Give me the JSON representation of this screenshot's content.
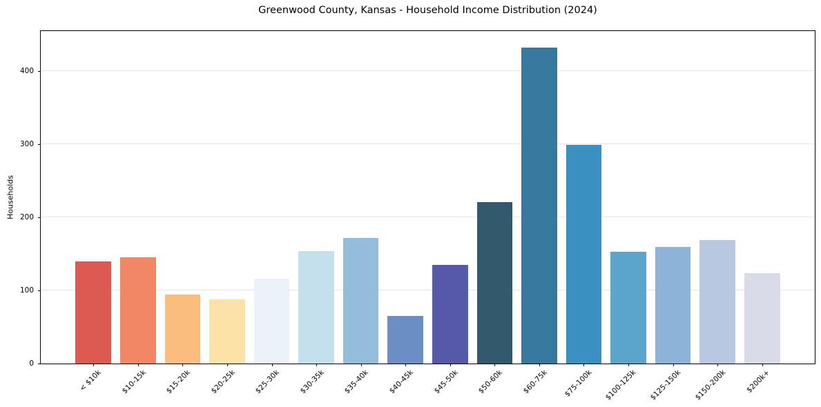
{
  "figure": {
    "title": "Greenwood County, Kansas - Household Income Distribution (2024)"
  },
  "chart_data": {
    "type": "bar",
    "title": "Greenwood County, Kansas - Household Income Distribution (2024)",
    "xlabel": "",
    "ylabel": "Households",
    "categories": [
      "< $10k",
      "$10-15k",
      "$15-20k",
      "$20-25k",
      "$25-30k",
      "$30-35k",
      "$35-40k",
      "$40-45k",
      "$45-50k",
      "$50-60k",
      "$60-75k",
      "$75-100k",
      "$100-125k",
      "$125-150k",
      "$150-200k",
      "$200k+"
    ],
    "values": [
      140,
      145,
      94,
      88,
      116,
      154,
      172,
      65,
      135,
      221,
      432,
      299,
      153,
      160,
      169,
      124
    ],
    "bar_colors": [
      "#dc5a51",
      "#f28765",
      "#fabd7d",
      "#fce2a6",
      "#e9f2f8",
      "#c3e0ec",
      "#93bdda",
      "#6b8fc5",
      "#5659a8",
      "#33596c",
      "#37789e",
      "#3a90c1",
      "#5ba4ca",
      "#8db3d8",
      "#b7c8e0",
      "#d9dbe8"
    ],
    "yticks": [
      0,
      100,
      200,
      300,
      400
    ],
    "ylim": [
      0,
      455
    ],
    "grid": "horizontal",
    "gridline_color": "#e6e6e6",
    "axis_color": "#000000",
    "background_color": "#ffffff",
    "legend": "none",
    "bar_width_fraction": 0.8,
    "xtick_rotation_deg": 45
  }
}
